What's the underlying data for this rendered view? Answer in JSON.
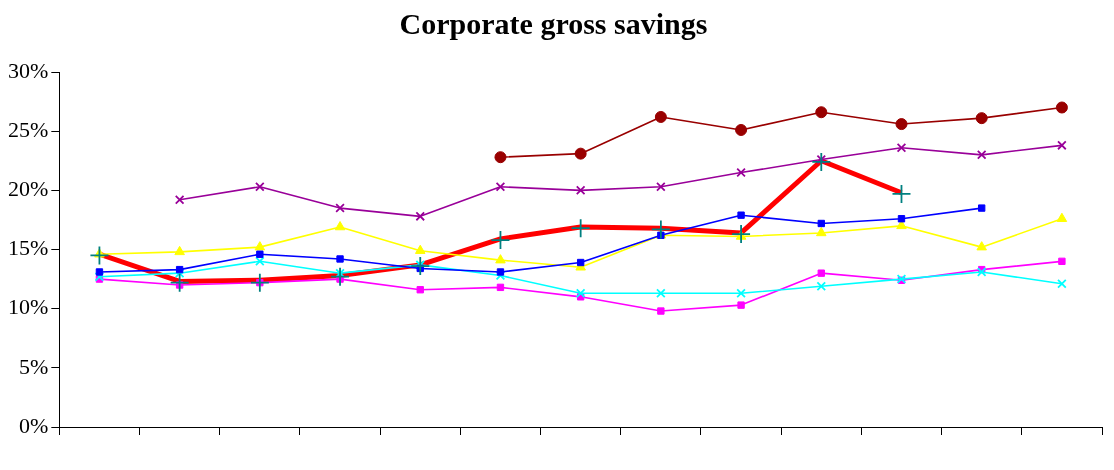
{
  "chart_data": {
    "type": "line",
    "title": "Corporate gross savings",
    "categories": [
      null,
      null,
      null,
      null,
      null,
      null,
      null,
      null,
      null,
      null,
      null,
      null,
      null
    ],
    "ylim": [
      0,
      30
    ],
    "yticks": [
      {
        "value": 0,
        "label": "0%"
      },
      {
        "value": 5,
        "label": "5%"
      },
      {
        "value": 10,
        "label": "10%"
      },
      {
        "value": 15,
        "label": "15%"
      },
      {
        "value": 20,
        "label": "20%"
      },
      {
        "value": 25,
        "label": "25%"
      },
      {
        "value": 30,
        "label": "30%"
      }
    ],
    "grid": false,
    "legend": false,
    "series": [
      {
        "color": "#990000",
        "marker": "circle",
        "values": [
          null,
          null,
          null,
          null,
          null,
          22.8,
          23.1,
          26.2,
          25.1,
          26.6,
          25.6,
          26.1,
          27.0
        ]
      },
      {
        "color": "#990099",
        "marker": "cross",
        "values": [
          null,
          19.2,
          20.3,
          18.5,
          17.8,
          20.3,
          20.0,
          20.3,
          21.5,
          22.6,
          23.6,
          23.0,
          23.8
        ]
      },
      {
        "color": "#0000ff",
        "marker": "square",
        "values": [
          13.1,
          13.3,
          14.6,
          14.2,
          13.4,
          13.1,
          13.9,
          16.2,
          17.9,
          17.2,
          17.6,
          18.5,
          null
        ]
      },
      {
        "color": "#ffff00",
        "marker": "triangle",
        "values": [
          14.6,
          14.8,
          15.2,
          16.9,
          14.9,
          14.1,
          13.5,
          16.2,
          16.1,
          16.4,
          17.0,
          15.2,
          17.6
        ]
      },
      {
        "color": "#00ffff",
        "marker": "cross",
        "values": [
          12.7,
          13.0,
          14.0,
          13.0,
          13.7,
          12.8,
          11.3,
          11.3,
          11.3,
          11.9,
          12.5,
          13.1,
          12.1
        ]
      },
      {
        "color": "#ff00ff",
        "marker": "square",
        "values": [
          12.5,
          12.0,
          12.2,
          12.5,
          11.6,
          11.8,
          11.0,
          9.8,
          10.3,
          13.0,
          12.4,
          13.3,
          14.0
        ]
      },
      {
        "color": "#ff0000",
        "marker": "none",
        "values": [
          14.6,
          12.3,
          12.4,
          12.8,
          13.7,
          15.9,
          16.9,
          16.8,
          16.4,
          22.5,
          19.8,
          null,
          null
        ]
      },
      {
        "type": "scatter",
        "color": "#008080",
        "marker": "cross",
        "values": [
          14.5,
          12.2,
          12.2,
          12.7,
          13.6,
          15.8,
          16.8,
          16.7,
          16.3,
          22.4,
          19.7,
          null,
          null
        ]
      }
    ]
  }
}
